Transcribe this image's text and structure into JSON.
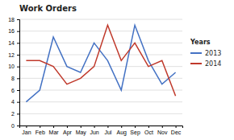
{
  "chart_data": {
    "type": "line",
    "title": "Work Orders",
    "categories": [
      "Jan",
      "Feb",
      "Mar",
      "Apr",
      "May",
      "Jun",
      "Jul",
      "Aug",
      "Sep",
      "Oct",
      "Nov",
      "Dec"
    ],
    "series": [
      {
        "name": "2013",
        "color": "#4472C4",
        "values": [
          4,
          6,
          15,
          10,
          9,
          14,
          11,
          6,
          17,
          11,
          7,
          9
        ]
      },
      {
        "name": "2014",
        "color": "#C0392B",
        "values": [
          11,
          11,
          10,
          7,
          8,
          10,
          17,
          11,
          14,
          10,
          11,
          5
        ]
      }
    ],
    "ylim": [
      0,
      18
    ],
    "yticks": [
      0,
      2,
      4,
      6,
      8,
      10,
      12,
      14,
      16,
      18
    ],
    "grid": true,
    "legend": "right",
    "legend_title": "Years"
  }
}
